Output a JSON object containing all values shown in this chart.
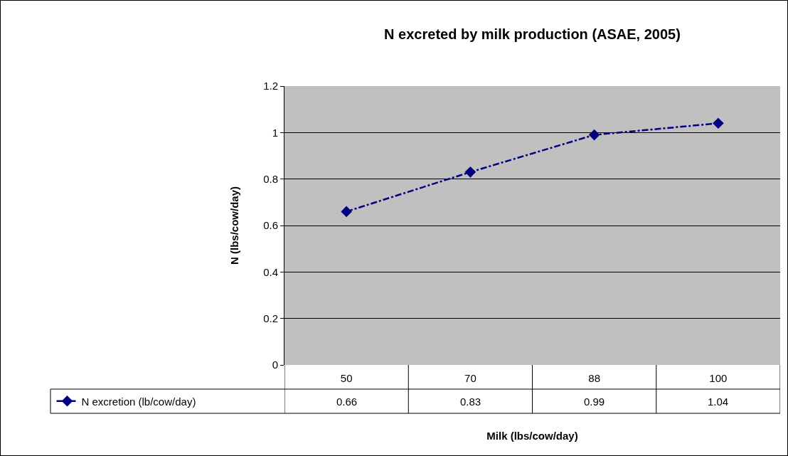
{
  "chart_data": {
    "type": "line",
    "title": "N excreted by milk production (ASAE, 2005)",
    "xlabel": "Milk (lbs/cow/day)",
    "ylabel": "N (lbs/cow/day)",
    "categories": [
      "50",
      "70",
      "88",
      "100"
    ],
    "series": [
      {
        "name": "N excretion (lb/cow/day)",
        "color": "#000080",
        "values": [
          0.66,
          0.83,
          0.99,
          1.04
        ]
      }
    ],
    "ylim": [
      0,
      1.2
    ],
    "yticks": [
      0,
      0.2,
      0.4,
      0.6,
      0.8,
      1,
      1.2
    ],
    "grid": "y",
    "legend": "bottom left",
    "marker": "diamond",
    "line_style": "dashed",
    "data_labels": true
  }
}
